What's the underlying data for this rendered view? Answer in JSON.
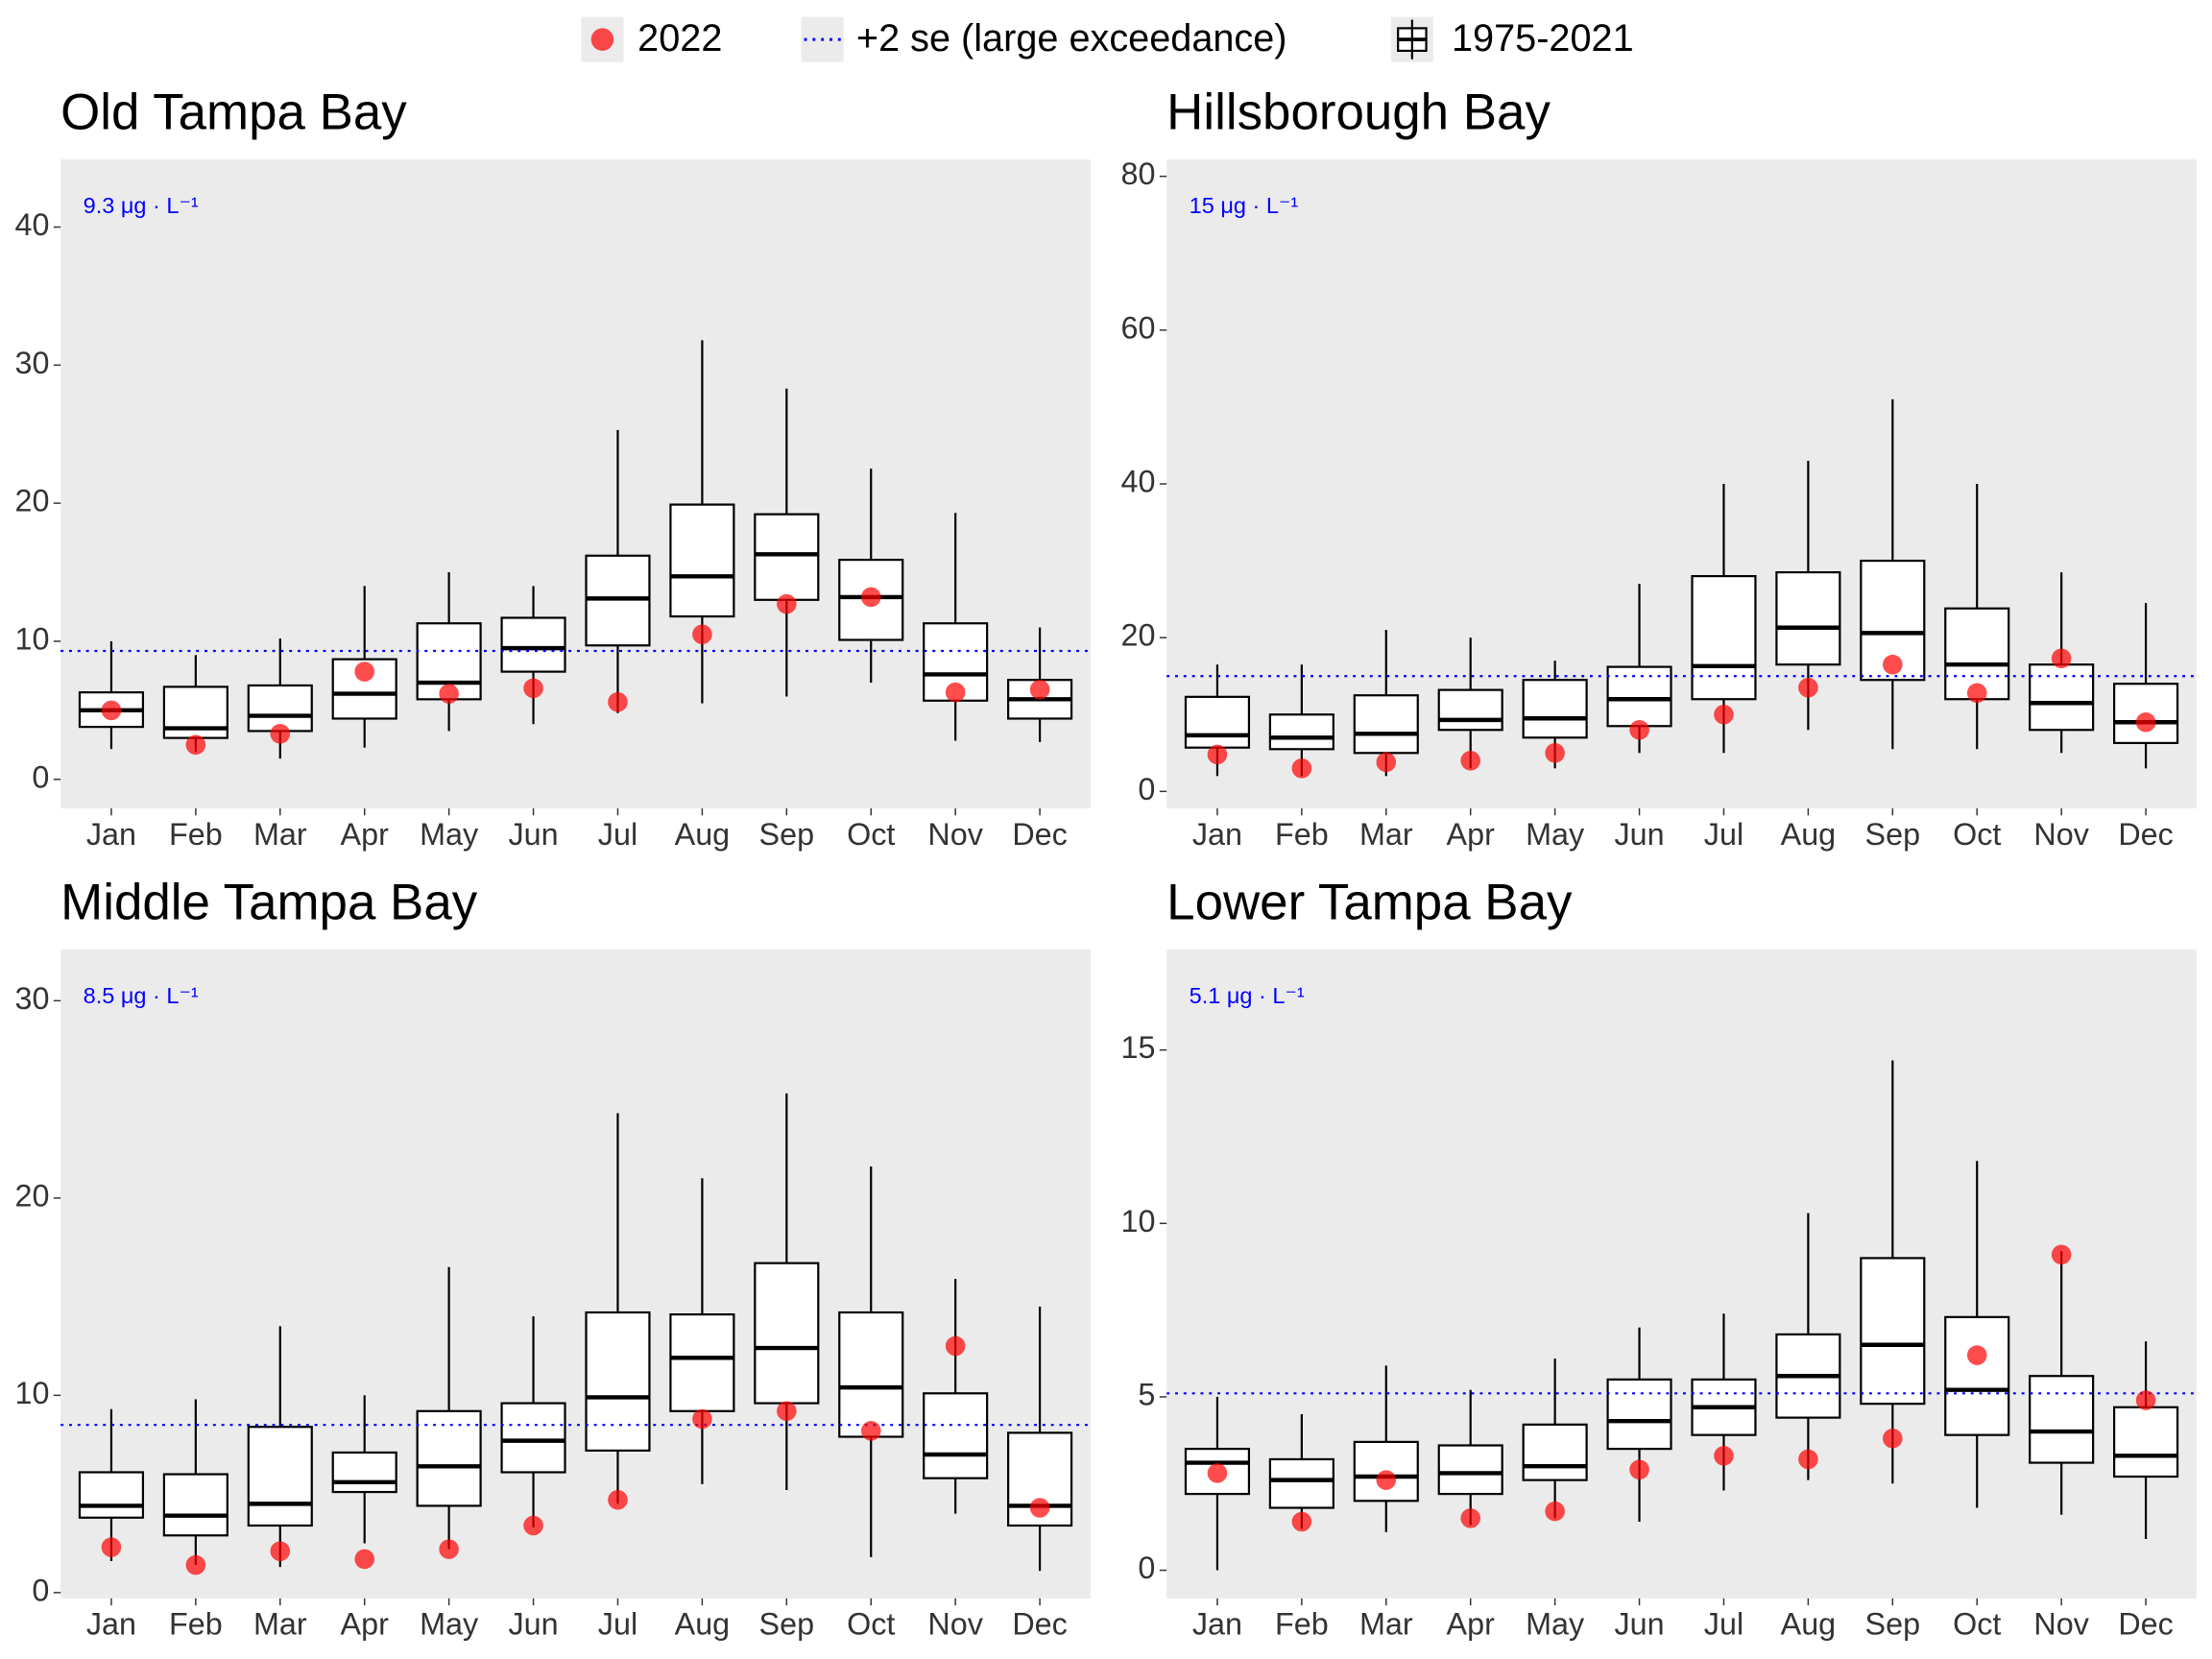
{
  "legend": [
    {
      "name": "2022",
      "color": "#ff0000"
    },
    {
      "name": "+2 se (large exceedance)",
      "color": "#0000ff"
    },
    {
      "name": "1975-2021",
      "color": "#000000"
    }
  ],
  "chart_data": [
    {
      "type": "box",
      "title": "Old Tampa Bay",
      "categories": [
        "Jan",
        "Feb",
        "Mar",
        "Apr",
        "May",
        "Jun",
        "Jul",
        "Aug",
        "Sep",
        "Oct",
        "Nov",
        "Dec"
      ],
      "boxes": {
        "whislo": [
          2.2,
          2.0,
          1.5,
          2.3,
          3.5,
          4.0,
          4.8,
          5.5,
          6.0,
          7.0,
          2.8,
          2.7
        ],
        "q1": [
          3.8,
          3.0,
          3.5,
          4.4,
          5.8,
          7.8,
          9.7,
          11.8,
          13.0,
          10.1,
          5.7,
          4.4
        ],
        "median": [
          5.0,
          3.7,
          4.6,
          6.2,
          7.0,
          9.5,
          13.1,
          14.7,
          16.3,
          13.2,
          7.6,
          5.8
        ],
        "q3": [
          6.3,
          6.7,
          6.8,
          8.7,
          11.3,
          11.7,
          16.2,
          19.9,
          19.2,
          15.9,
          11.3,
          7.2
        ],
        "whishi": [
          10.0,
          9.0,
          10.2,
          14.0,
          15.0,
          14.0,
          25.3,
          31.8,
          28.3,
          22.5,
          19.3,
          11.0
        ]
      },
      "points": {
        "values": [
          5.0,
          2.5,
          3.3,
          7.8,
          6.2,
          6.6,
          5.6,
          10.5,
          12.7,
          13.2,
          6.3,
          6.5
        ]
      },
      "threshold": {
        "value": 9.3,
        "label": "9.3 μg · L⁻¹"
      },
      "ylim": [
        -2.1,
        44.9
      ],
      "yticks": [
        0,
        10,
        20,
        30,
        40
      ]
    },
    {
      "type": "box",
      "title": "Hillsborough Bay",
      "categories": [
        "Jan",
        "Feb",
        "Mar",
        "Apr",
        "May",
        "Jun",
        "Jul",
        "Aug",
        "Sep",
        "Oct",
        "Nov",
        "Dec"
      ],
      "boxes": {
        "whislo": [
          2.0,
          2.0,
          2.0,
          3.0,
          3.0,
          5.0,
          5.0,
          8.0,
          5.5,
          5.5,
          5.0,
          3.0
        ],
        "q1": [
          5.7,
          5.5,
          5.0,
          8.0,
          7.0,
          8.5,
          12.0,
          16.5,
          14.5,
          12.0,
          8.0,
          6.3
        ],
        "median": [
          7.3,
          7.0,
          7.5,
          9.3,
          9.5,
          12.0,
          16.3,
          21.3,
          20.6,
          16.5,
          11.5,
          9.0
        ],
        "q3": [
          12.3,
          10.0,
          12.5,
          13.2,
          14.5,
          16.2,
          28.0,
          28.5,
          30.0,
          23.8,
          16.5,
          14.0
        ],
        "whishi": [
          16.5,
          16.5,
          21.0,
          20.0,
          17.0,
          27.0,
          40.0,
          43.0,
          51.0,
          40.0,
          28.5,
          24.5
        ]
      },
      "points": {
        "values": [
          4.8,
          3.0,
          3.8,
          4.0,
          5.0,
          8.0,
          10.0,
          13.5,
          16.5,
          12.8,
          17.3,
          9.0
        ]
      },
      "threshold": {
        "value": 15,
        "label": "15 μg · L⁻¹"
      },
      "ylim": [
        -2.2,
        82.2
      ],
      "yticks": [
        0,
        20,
        40,
        60,
        80
      ]
    },
    {
      "type": "box",
      "title": "Middle Tampa Bay",
      "categories": [
        "Jan",
        "Feb",
        "Mar",
        "Apr",
        "May",
        "Jun",
        "Jul",
        "Aug",
        "Sep",
        "Oct",
        "Nov",
        "Dec"
      ],
      "boxes": {
        "whislo": [
          1.6,
          1.4,
          1.3,
          2.5,
          2.2,
          3.3,
          4.5,
          5.5,
          5.2,
          1.8,
          4.0,
          1.1
        ],
        "q1": [
          3.8,
          2.9,
          3.4,
          5.1,
          4.4,
          6.1,
          7.2,
          9.2,
          9.6,
          7.9,
          5.8,
          3.4
        ],
        "median": [
          4.4,
          3.9,
          4.5,
          5.6,
          6.4,
          7.7,
          9.9,
          11.9,
          12.4,
          10.4,
          7.0,
          4.4
        ],
        "q3": [
          6.1,
          6.0,
          8.4,
          7.1,
          9.2,
          9.6,
          14.2,
          14.1,
          16.7,
          14.2,
          10.1,
          8.1
        ],
        "whishi": [
          9.3,
          9.8,
          13.5,
          10.0,
          16.5,
          14.0,
          24.3,
          21.0,
          25.3,
          21.6,
          15.9,
          14.5
        ]
      },
      "points": {
        "values": [
          2.3,
          1.4,
          2.1,
          1.7,
          2.2,
          3.4,
          4.7,
          8.8,
          9.2,
          8.2,
          12.5,
          4.3
        ]
      },
      "threshold": {
        "value": 8.5,
        "label": "8.5 μg · L⁻¹"
      },
      "ylim": [
        -0.29,
        32.6
      ],
      "yticks": [
        0,
        10,
        20,
        30
      ]
    },
    {
      "type": "box",
      "title": "Lower Tampa Bay",
      "categories": [
        "Jan",
        "Feb",
        "Mar",
        "Apr",
        "May",
        "Jun",
        "Jul",
        "Aug",
        "Sep",
        "Oct",
        "Nov",
        "Dec"
      ],
      "boxes": {
        "whislo": [
          0.0,
          1.2,
          1.1,
          1.3,
          1.5,
          1.4,
          2.3,
          2.6,
          2.5,
          1.8,
          1.6,
          0.9
        ],
        "q1": [
          2.2,
          1.8,
          2.0,
          2.2,
          2.6,
          3.5,
          3.9,
          4.4,
          4.8,
          3.9,
          3.1,
          2.7
        ],
        "median": [
          3.1,
          2.6,
          2.7,
          2.8,
          3.0,
          4.3,
          4.7,
          5.6,
          6.5,
          5.2,
          4.0,
          3.3
        ],
        "q3": [
          3.5,
          3.2,
          3.7,
          3.6,
          4.2,
          5.5,
          5.5,
          6.8,
          9.0,
          7.3,
          5.6,
          4.7
        ],
        "whishi": [
          5.0,
          4.5,
          5.9,
          5.2,
          6.1,
          7.0,
          7.4,
          10.3,
          14.7,
          11.8,
          9.2,
          6.6
        ]
      },
      "points": {
        "values": [
          2.8,
          1.4,
          2.6,
          1.5,
          1.7,
          2.9,
          3.3,
          3.2,
          3.8,
          6.2,
          9.1,
          4.9
        ]
      },
      "threshold": {
        "value": 5.1,
        "label": "5.1 μg · L⁻¹"
      },
      "ylim": [
        -0.81,
        17.9
      ],
      "yticks": [
        0,
        5,
        10,
        15
      ]
    }
  ]
}
